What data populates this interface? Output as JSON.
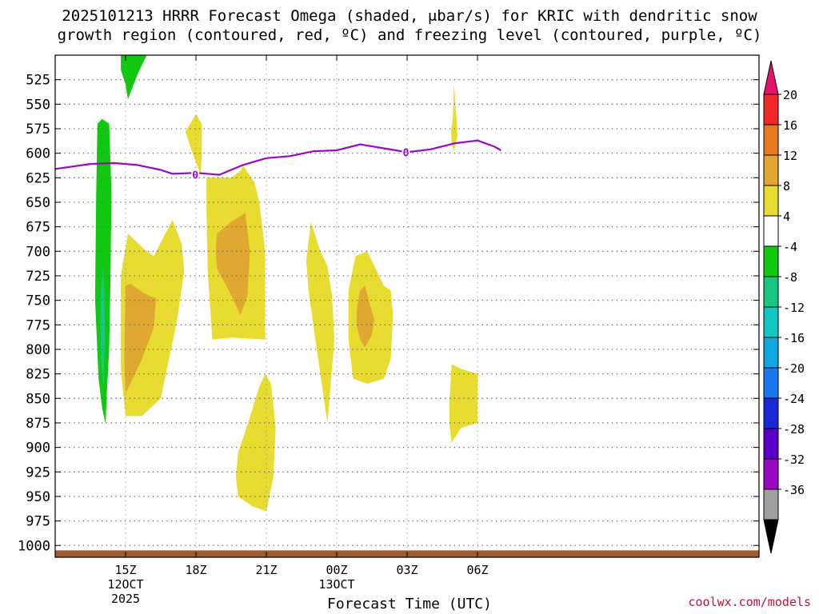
{
  "title_line1": "2025101213 HRRR Forecast Omega (shaded, μbar/s) for KRIC with dendritic snow",
  "title_line2": "growth region (contoured, red, ºC) and freezing level (contoured, purple, ºC)",
  "credit": "coolwx.com/models",
  "chart_data": {
    "type": "contour",
    "title": "2025101213 HRRR Forecast Omega (shaded, μbar/s) for KRIC with dendritic snow growth region (contoured, red, ºC) and freezing level (contoured, purple, ºC)",
    "xlabel": "Forecast Time (UTC)",
    "ylabel": "",
    "x_unit": "forecast hour",
    "xlim": [
      -1,
      29
    ],
    "ylim": [
      1012,
      500
    ],
    "y_ticks": [
      525,
      550,
      575,
      600,
      625,
      650,
      675,
      700,
      725,
      750,
      775,
      800,
      825,
      850,
      875,
      900,
      925,
      950,
      975,
      1000
    ],
    "x_ticks": [
      {
        "x": 2,
        "label": "15Z",
        "sub1": "12OCT",
        "sub2": "2025"
      },
      {
        "x": 5,
        "label": "18Z"
      },
      {
        "x": 8,
        "label": "21Z"
      },
      {
        "x": 11,
        "label": "00Z",
        "sub1": "13OCT"
      },
      {
        "x": 14,
        "label": "03Z"
      },
      {
        "x": 17,
        "label": "06Z"
      }
    ],
    "colorbar": {
      "levels": [
        -36,
        -32,
        -28,
        -24,
        -20,
        -16,
        -12,
        -8,
        -4,
        4,
        8,
        12,
        16,
        20
      ],
      "colors": [
        "#a0a0a0",
        "#9a08c4",
        "#5c00c8",
        "#1c28d8",
        "#1878f0",
        "#10a8e0",
        "#10c8c0",
        "#18c880",
        "#10c810",
        "#ffffff",
        "#e8dc30",
        "#e0a830",
        "#e8781e",
        "#f02828"
      ],
      "top_arrow": "#e8106c",
      "bottom_arrow": "#000000",
      "labels": [
        "20",
        "16",
        "12",
        "8",
        "4",
        "-4",
        "-8",
        "-12",
        "-16",
        "-20",
        "-24",
        "-28",
        "-32",
        "-36"
      ]
    },
    "freezing_level": {
      "label": "0",
      "label_points": [
        [
          4.97,
          622
        ],
        [
          13.95,
          599
        ]
      ],
      "points": [
        [
          -1,
          616
        ],
        [
          0.5,
          611
        ],
        [
          1.5,
          610
        ],
        [
          2.5,
          612
        ],
        [
          3.5,
          617
        ],
        [
          4,
          621
        ],
        [
          5,
          620
        ],
        [
          6,
          622
        ],
        [
          7,
          612
        ],
        [
          8,
          605
        ],
        [
          9,
          603
        ],
        [
          10,
          598
        ],
        [
          11,
          597
        ],
        [
          12,
          591
        ],
        [
          13,
          595
        ],
        [
          14,
          599
        ],
        [
          15,
          596
        ],
        [
          16,
          590
        ],
        [
          17,
          587
        ],
        [
          17.7,
          593
        ],
        [
          18,
          597
        ]
      ]
    },
    "surface_band": {
      "top": 1005,
      "color": "#a05a32"
    },
    "omega_regions": [
      {
        "level": -8,
        "color": "#10c810",
        "points": [
          [
            0.8,
            570
          ],
          [
            1.0,
            565
          ],
          [
            1.3,
            570
          ],
          [
            1.4,
            640
          ],
          [
            1.35,
            740
          ],
          [
            1.3,
            800
          ],
          [
            1.2,
            845
          ],
          [
            1.15,
            876
          ],
          [
            1.0,
            860
          ],
          [
            0.85,
            830
          ],
          [
            0.7,
            750
          ],
          [
            0.72,
            700
          ],
          [
            0.75,
            640
          ]
        ]
      },
      {
        "level": -12,
        "color": "#18c880",
        "points": [
          [
            0.95,
            740
          ],
          [
            1.02,
            715
          ],
          [
            1.1,
            740
          ],
          [
            1.12,
            790
          ],
          [
            1.05,
            838
          ],
          [
            0.97,
            818
          ],
          [
            0.92,
            780
          ]
        ]
      },
      {
        "level": -8,
        "color": "#10c810",
        "points": [
          [
            1.8,
            500
          ],
          [
            2.9,
            500
          ],
          [
            2.5,
            520
          ],
          [
            2.1,
            545
          ],
          [
            2.0,
            530
          ],
          [
            1.8,
            515
          ]
        ]
      },
      {
        "level": 4,
        "color": "#e8dc30",
        "points": [
          [
            1.8,
            725
          ],
          [
            2.1,
            682
          ],
          [
            2.8,
            698
          ],
          [
            3.2,
            705
          ],
          [
            4.0,
            668
          ],
          [
            4.4,
            693
          ],
          [
            4.5,
            720
          ],
          [
            4.2,
            770
          ],
          [
            3.5,
            850
          ],
          [
            2.7,
            868
          ],
          [
            2.0,
            868
          ],
          [
            1.8,
            820
          ]
        ]
      },
      {
        "level": 8,
        "color": "#e0a830",
        "points": [
          [
            2.0,
            735
          ],
          [
            2.2,
            733
          ],
          [
            2.8,
            743
          ],
          [
            3.3,
            748
          ],
          [
            3.2,
            778
          ],
          [
            2.7,
            810
          ],
          [
            2.0,
            845
          ],
          [
            1.95,
            810
          ]
        ]
      },
      {
        "level": 4,
        "color": "#e8dc30",
        "points": [
          [
            4.55,
            578
          ],
          [
            5.0,
            560
          ],
          [
            5.25,
            570
          ],
          [
            5.25,
            600
          ],
          [
            5.2,
            622
          ],
          [
            4.8,
            596
          ]
        ]
      },
      {
        "level": 4,
        "color": "#e8dc30",
        "points": [
          [
            5.45,
            625
          ],
          [
            6.5,
            625
          ],
          [
            6.9,
            618
          ],
          [
            7.0,
            612
          ],
          [
            7.5,
            630
          ],
          [
            7.7,
            650
          ],
          [
            7.95,
            700
          ],
          [
            7.95,
            790
          ],
          [
            6.5,
            788
          ],
          [
            5.7,
            790
          ],
          [
            5.5,
            720
          ],
          [
            5.45,
            660
          ]
        ]
      },
      {
        "level": 8,
        "color": "#e0a830",
        "points": [
          [
            5.9,
            682
          ],
          [
            6.5,
            670
          ],
          [
            7.1,
            661
          ],
          [
            7.3,
            700
          ],
          [
            7.2,
            745
          ],
          [
            6.9,
            765
          ],
          [
            6.4,
            740
          ],
          [
            5.9,
            718
          ],
          [
            5.85,
            700
          ]
        ]
      },
      {
        "level": 4,
        "color": "#e8dc30",
        "points": [
          [
            6.7,
            930
          ],
          [
            6.8,
            905
          ],
          [
            7.2,
            877
          ],
          [
            7.7,
            838
          ],
          [
            7.95,
            825
          ],
          [
            8.2,
            835
          ],
          [
            8.4,
            880
          ],
          [
            8.3,
            930
          ],
          [
            8.0,
            965
          ],
          [
            7.4,
            960
          ],
          [
            6.8,
            950
          ]
        ]
      },
      {
        "level": 4,
        "color": "#e8dc30",
        "points": [
          [
            9.7,
            710
          ],
          [
            9.9,
            670
          ],
          [
            10.3,
            700
          ],
          [
            10.6,
            715
          ],
          [
            10.8,
            745
          ],
          [
            10.9,
            790
          ],
          [
            10.6,
            875
          ],
          [
            10.0,
            775
          ],
          [
            9.8,
            740
          ]
        ]
      },
      {
        "level": 4,
        "color": "#e8dc30",
        "points": [
          [
            11.5,
            740
          ],
          [
            11.8,
            705
          ],
          [
            12.3,
            700
          ],
          [
            12.7,
            720
          ],
          [
            13.0,
            735
          ],
          [
            13.3,
            740
          ],
          [
            13.4,
            765
          ],
          [
            13.3,
            810
          ],
          [
            13.0,
            830
          ],
          [
            12.3,
            835
          ],
          [
            11.7,
            830
          ],
          [
            11.5,
            790
          ]
        ]
      },
      {
        "level": 8,
        "color": "#e0a830",
        "points": [
          [
            11.85,
            760
          ],
          [
            12.0,
            740
          ],
          [
            12.2,
            735
          ],
          [
            12.6,
            770
          ],
          [
            12.5,
            785
          ],
          [
            12.2,
            798
          ],
          [
            12.0,
            790
          ],
          [
            11.85,
            775
          ]
        ]
      },
      {
        "level": 4,
        "color": "#e8dc30",
        "points": [
          [
            15.8,
            855
          ],
          [
            15.9,
            815
          ],
          [
            16.3,
            820
          ],
          [
            17.0,
            825
          ],
          [
            17.0,
            875
          ],
          [
            16.3,
            880
          ],
          [
            15.9,
            895
          ],
          [
            15.8,
            875
          ]
        ]
      },
      {
        "level": 4,
        "color": "#e8dc30",
        "points": [
          [
            15.88,
            578
          ],
          [
            15.95,
            563
          ],
          [
            16.0,
            530
          ],
          [
            16.1,
            563
          ],
          [
            16.15,
            582
          ],
          [
            16.0,
            598
          ],
          [
            15.9,
            590
          ]
        ]
      }
    ]
  }
}
